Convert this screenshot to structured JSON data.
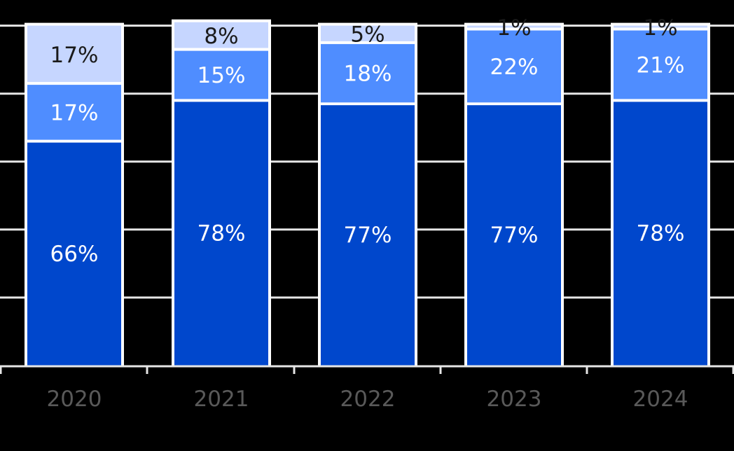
{
  "chart_data": {
    "type": "bar",
    "stacked": true,
    "categories": [
      "2020",
      "2021",
      "2022",
      "2023",
      "2024"
    ],
    "series": [
      {
        "values": [
          66,
          78,
          77,
          77,
          78
        ],
        "labels": [
          "66%",
          "78%",
          "77%",
          "77%",
          "78%"
        ],
        "color": "#0047CC",
        "label_color": "#ffffff"
      },
      {
        "values": [
          17,
          15,
          18,
          22,
          21
        ],
        "labels": [
          "17%",
          "15%",
          "18%",
          "22%",
          "21%"
        ],
        "color": "#4F8DFF",
        "label_color": "#ffffff"
      },
      {
        "values": [
          17,
          8,
          5,
          1,
          1
        ],
        "labels": [
          "17%",
          "8%",
          "5%",
          "1%",
          "1%"
        ],
        "color": "#C6D6FF",
        "label_color": "#1a1a1a"
      }
    ],
    "ylim": [
      0,
      100
    ],
    "grid": true,
    "title": "",
    "xlabel": "",
    "ylabel": ""
  }
}
